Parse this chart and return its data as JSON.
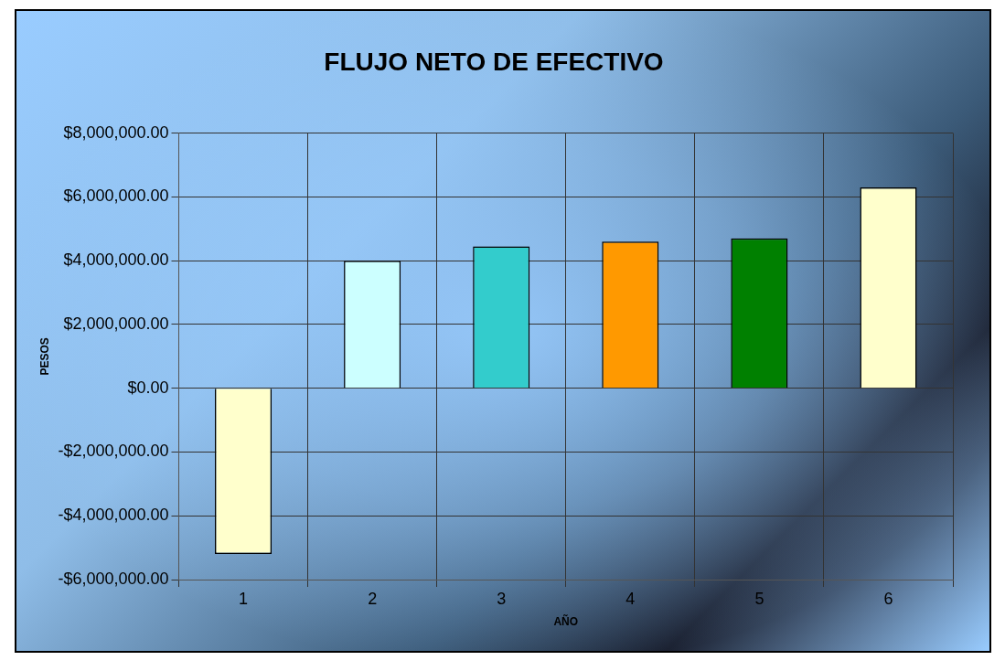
{
  "chart_data": {
    "type": "bar",
    "title": "FLUJO NETO DE EFECTIVO",
    "xlabel": "AÑO",
    "ylabel": "PESOS",
    "categories": [
      "1",
      "2",
      "3",
      "4",
      "5",
      "6"
    ],
    "values": [
      -5200000,
      4000000,
      4450000,
      4600000,
      4700000,
      6300000
    ],
    "colors": [
      "#ffffcc",
      "#ccffff",
      "#33cccc",
      "#ff9900",
      "#008000",
      "#ffffcc"
    ],
    "ylim": [
      -6000000,
      8000000
    ],
    "yticks": [
      {
        "value": -6000000,
        "label": "-$6,000,000.00"
      },
      {
        "value": -4000000,
        "label": "-$4,000,000.00"
      },
      {
        "value": -2000000,
        "label": "-$2,000,000.00"
      },
      {
        "value": 0,
        "label": "$0.00"
      },
      {
        "value": 2000000,
        "label": "$2,000,000.00"
      },
      {
        "value": 4000000,
        "label": "$4,000,000.00"
      },
      {
        "value": 6000000,
        "label": "$6,000,000.00"
      },
      {
        "value": 8000000,
        "label": "$8,000,000.00"
      }
    ],
    "grid": true,
    "legend": false
  }
}
